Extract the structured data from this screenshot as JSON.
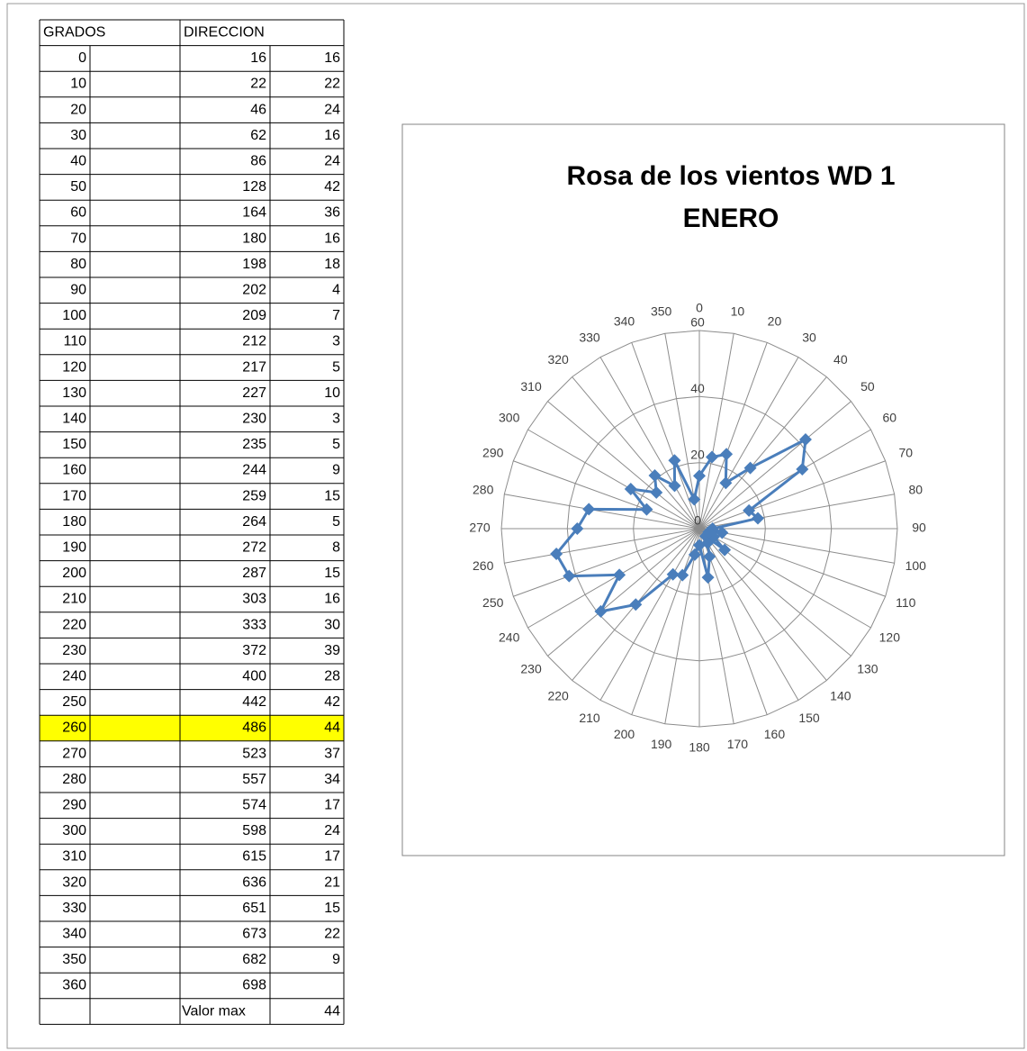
{
  "table": {
    "header": [
      "GRADOS",
      "DIRECCION"
    ],
    "rows": [
      [
        0,
        16,
        16
      ],
      [
        10,
        22,
        22
      ],
      [
        20,
        46,
        24
      ],
      [
        30,
        62,
        16
      ],
      [
        40,
        86,
        24
      ],
      [
        50,
        128,
        42
      ],
      [
        60,
        164,
        36
      ],
      [
        70,
        180,
        16
      ],
      [
        80,
        198,
        18
      ],
      [
        90,
        202,
        4
      ],
      [
        100,
        209,
        7
      ],
      [
        110,
        212,
        3
      ],
      [
        120,
        217,
        5
      ],
      [
        130,
        227,
        10
      ],
      [
        140,
        230,
        3
      ],
      [
        150,
        235,
        5
      ],
      [
        160,
        244,
        9
      ],
      [
        170,
        259,
        15
      ],
      [
        180,
        264,
        5
      ],
      [
        190,
        272,
        8
      ],
      [
        200,
        287,
        15
      ],
      [
        210,
        303,
        16
      ],
      [
        220,
        333,
        30
      ],
      [
        230,
        372,
        39
      ],
      [
        240,
        400,
        28
      ],
      [
        250,
        442,
        42
      ],
      [
        260,
        486,
        44
      ],
      [
        270,
        523,
        37
      ],
      [
        280,
        557,
        34
      ],
      [
        290,
        574,
        17
      ],
      [
        300,
        598,
        24
      ],
      [
        310,
        615,
        17
      ],
      [
        320,
        636,
        21
      ],
      [
        330,
        651,
        15
      ],
      [
        340,
        673,
        22
      ],
      [
        350,
        682,
        9
      ],
      [
        360,
        698,
        null
      ]
    ],
    "footer": {
      "label": "Valor max",
      "value": 44
    },
    "highlight": {
      "row": 26,
      "color": "#ffff00"
    }
  },
  "chart_data": {
    "type": "radar",
    "title": [
      "Rosa de los vientos WD 1",
      "ENERO"
    ],
    "categories": [
      0,
      10,
      20,
      30,
      40,
      50,
      60,
      70,
      80,
      90,
      100,
      110,
      120,
      130,
      140,
      150,
      160,
      170,
      180,
      190,
      200,
      210,
      220,
      230,
      240,
      250,
      260,
      270,
      280,
      290,
      300,
      310,
      320,
      330,
      340,
      350
    ],
    "values": [
      16,
      22,
      24,
      16,
      24,
      42,
      36,
      16,
      18,
      4,
      7,
      3,
      5,
      10,
      3,
      5,
      9,
      15,
      5,
      8,
      15,
      16,
      30,
      39,
      28,
      42,
      44,
      37,
      34,
      17,
      24,
      17,
      21,
      15,
      22,
      9
    ],
    "color": "#4a7ebb",
    "ylim": [
      0,
      60
    ],
    "yticks": [
      0,
      20,
      40,
      60
    ],
    "grid": true
  }
}
